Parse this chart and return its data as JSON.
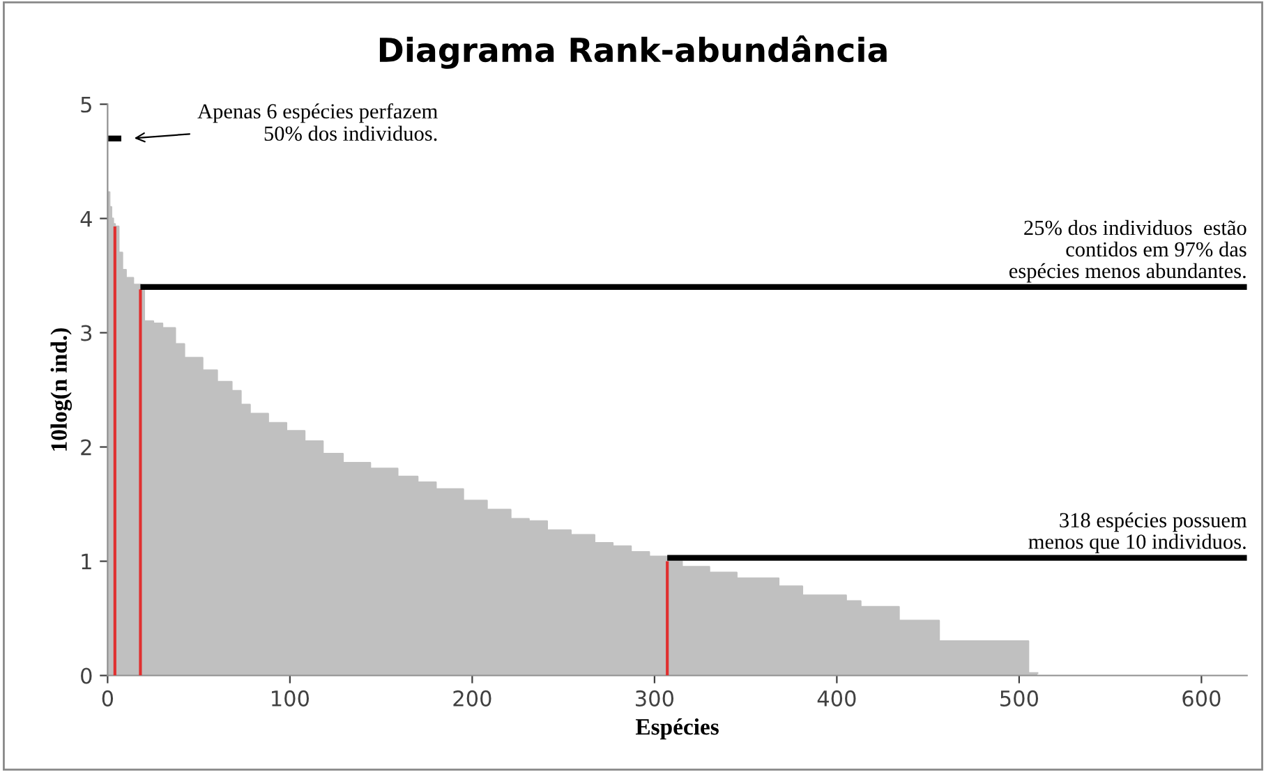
{
  "chart_data": {
    "type": "area",
    "title": "Diagrama Rank-abundância",
    "xlabel": "Espécies",
    "ylabel": "10log(n ind.)",
    "x": [
      0,
      1,
      1,
      2,
      2,
      3,
      3,
      4,
      4,
      6,
      6,
      8,
      8,
      10,
      10,
      14,
      14,
      18,
      18,
      20,
      20,
      25,
      25,
      30,
      30,
      37,
      37,
      42,
      42,
      52,
      52,
      60,
      60,
      68,
      68,
      73,
      73,
      78,
      78,
      88,
      88,
      98,
      98,
      108,
      108,
      118,
      118,
      129,
      129,
      144,
      144,
      159,
      159,
      170,
      170,
      180,
      180,
      195,
      195,
      208,
      208,
      221,
      221,
      231,
      231,
      241,
      241,
      254,
      254,
      267,
      267,
      277,
      277,
      287,
      287,
      297,
      297,
      307,
      307,
      315,
      315,
      330,
      330,
      345,
      345,
      368,
      368,
      381,
      381,
      405,
      405,
      413,
      413,
      434,
      434,
      456,
      456,
      505,
      505,
      510
    ],
    "series": [
      {
        "color": "#c0c0c0",
        "values": [
          4.23,
          4.23,
          4.1,
          4.1,
          4.0,
          4.0,
          3.95,
          3.95,
          3.93,
          3.93,
          3.7,
          3.7,
          3.55,
          3.55,
          3.48,
          3.48,
          3.42,
          3.42,
          3.38,
          3.38,
          3.1,
          3.1,
          3.08,
          3.08,
          3.04,
          3.04,
          2.9,
          2.9,
          2.78,
          2.78,
          2.67,
          2.67,
          2.57,
          2.57,
          2.49,
          2.49,
          2.37,
          2.37,
          2.29,
          2.29,
          2.21,
          2.21,
          2.14,
          2.14,
          2.05,
          2.05,
          1.94,
          1.94,
          1.86,
          1.86,
          1.81,
          1.81,
          1.74,
          1.74,
          1.69,
          1.69,
          1.63,
          1.63,
          1.53,
          1.53,
          1.45,
          1.45,
          1.37,
          1.37,
          1.35,
          1.35,
          1.27,
          1.27,
          1.23,
          1.23,
          1.16,
          1.16,
          1.13,
          1.13,
          1.08,
          1.08,
          1.04,
          1.04,
          1.0,
          1.0,
          0.95,
          0.95,
          0.9,
          0.9,
          0.85,
          0.85,
          0.78,
          0.78,
          0.7,
          0.7,
          0.65,
          0.65,
          0.6,
          0.6,
          0.48,
          0.48,
          0.3,
          0.3,
          0.02,
          0.02
        ]
      }
    ],
    "xlim": [
      0,
      625
    ],
    "xticks": [
      0,
      100,
      200,
      300,
      400,
      500,
      600
    ],
    "ylim": [
      0,
      5
    ],
    "yticks": [
      0,
      1,
      2,
      3,
      4,
      5
    ],
    "grid": false,
    "legend": false,
    "ref_lines": [
      {
        "axis": "x",
        "value": 4,
        "color": "#e03030"
      },
      {
        "axis": "x",
        "value": 18,
        "color": "#e03030"
      },
      {
        "axis": "x",
        "value": 307,
        "color": "#e03030"
      },
      {
        "axis": "y",
        "value": 3.4,
        "color": "#000000",
        "label": "25% dos individuos  estão\ncontidos em 97% das\nespécies menos abundantes."
      },
      {
        "axis": "y",
        "value": 1.03,
        "color": "#000000",
        "label": "318 espécies possuem\nmenos que 10 individuos."
      }
    ],
    "annotations": [
      "Apenas 6 espécies perfazem\n50% dos individuos."
    ]
  }
}
